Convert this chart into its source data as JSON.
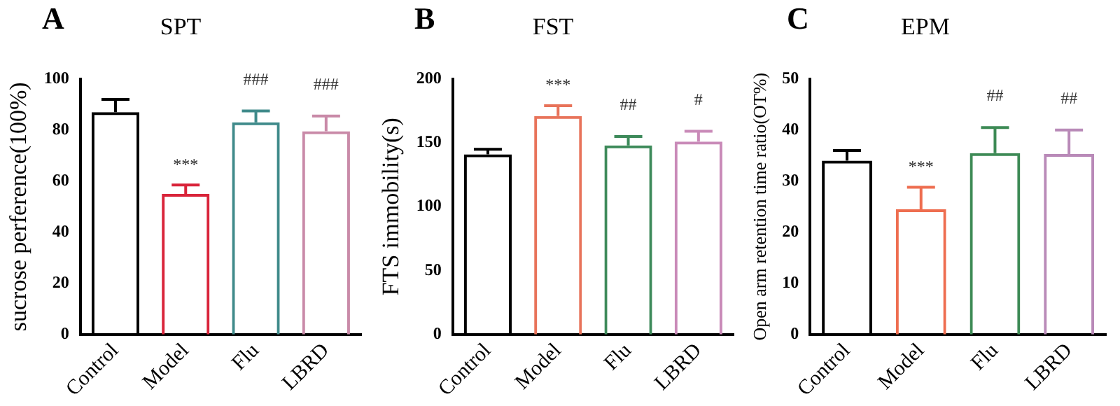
{
  "chart_data": [
    {
      "type": "bar",
      "title": "SPT",
      "ylabel": "sucrose perference(100%)",
      "categories": [
        "Control",
        "Model",
        "Flu",
        "LBRD"
      ],
      "values": [
        87,
        55,
        83,
        79.5
      ],
      "colors": [
        "#000000",
        "#d9243a",
        "#3f8a8a",
        "#c98aa8"
      ],
      "errors": [
        [
          87,
          92
        ],
        [
          55,
          58.5
        ],
        [
          83,
          87.5
        ],
        [
          79.5,
          85.5
        ]
      ],
      "ylim": [
        0,
        100
      ],
      "yticks": [
        0,
        20,
        40,
        60,
        80,
        100
      ],
      "grid": false,
      "legend": false,
      "annotations": [
        "A",
        "***",
        "###",
        "###"
      ]
    },
    {
      "type": "bar",
      "title": "FST",
      "ylabel": "FTS immobility(s)",
      "categories": [
        "Control",
        "Model",
        "Flu",
        "LBRD"
      ],
      "values": [
        141,
        171,
        148,
        151
      ],
      "colors": [
        "#000000",
        "#e8735a",
        "#3d8a5a",
        "#c98ab8"
      ],
      "errors": [
        [
          141,
          145
        ],
        [
          171,
          179
        ],
        [
          148,
          155
        ],
        [
          151,
          159
        ]
      ],
      "ylim": [
        0,
        200
      ],
      "yticks": [
        0,
        50,
        100,
        150,
        200
      ],
      "grid": false,
      "legend": false,
      "annotations": [
        "B",
        "***",
        "##",
        "#"
      ]
    },
    {
      "type": "bar",
      "title": "EPM",
      "ylabel": "Open arm retention time ratio(OT%)",
      "categories": [
        "Control",
        "Model",
        "Flu",
        "LBRD"
      ],
      "values": [
        34,
        24.5,
        35.5,
        35.3
      ],
      "colors": [
        "#000000",
        "#ee6e50",
        "#3d8a55",
        "#b98ab8"
      ],
      "errors": [
        [
          34,
          36
        ],
        [
          24.5,
          28.8
        ],
        [
          35.5,
          40.5
        ],
        [
          35.3,
          40
        ]
      ],
      "ylim": [
        0,
        50
      ],
      "yticks": [
        0,
        10,
        20,
        30,
        40,
        50
      ],
      "grid": false,
      "legend": false,
      "annotations": [
        "C",
        "***",
        "##",
        "##"
      ]
    }
  ]
}
